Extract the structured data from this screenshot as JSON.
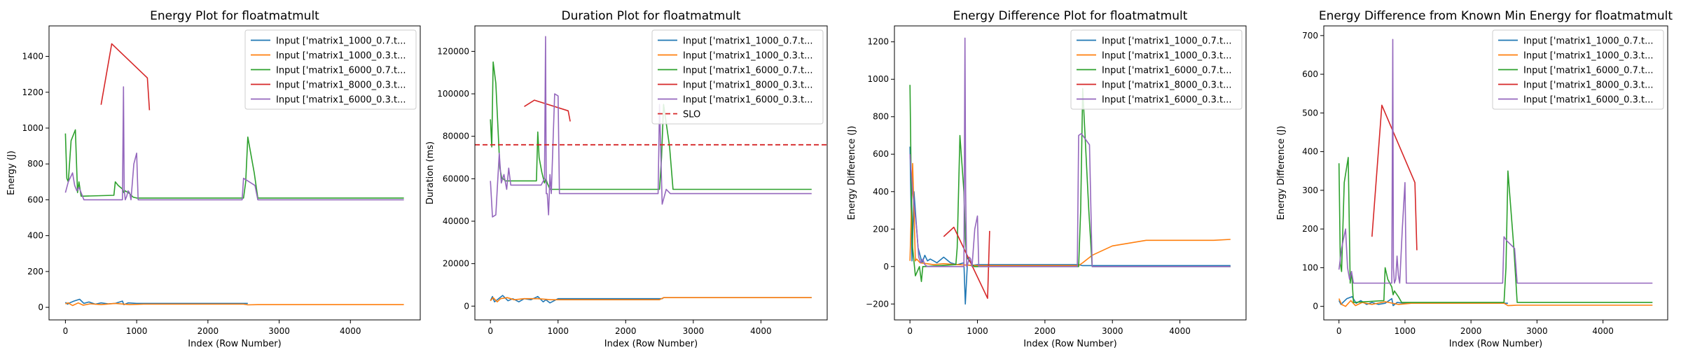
{
  "chart_data": [
    {
      "type": "line",
      "title": "Energy Plot for floatmatmult",
      "xlabel": "Index (Row Number)",
      "ylabel": "Energy (J)",
      "xlim": [
        -230,
        4980
      ],
      "ylim": [
        -70,
        1570
      ],
      "xticks": [
        0,
        1000,
        2000,
        3000,
        4000
      ],
      "yticks": [
        0,
        200,
        400,
        600,
        800,
        1000,
        1200,
        1400
      ],
      "legend_position": "top-right",
      "series": [
        {
          "name": "Input ['matrix1_1000_0.7.t...",
          "color": "#1f77b4",
          "x": [
            0,
            30,
            60,
            120,
            200,
            260,
            330,
            420,
            500,
            600,
            700,
            800,
            820,
            880,
            1000,
            1200,
            2500,
            2540,
            2560
          ],
          "y": [
            28,
            18,
            25,
            35,
            45,
            22,
            30,
            18,
            25,
            20,
            22,
            35,
            15,
            25,
            22,
            22,
            22,
            22,
            22
          ]
        },
        {
          "name": "Input ['matrix1_1000_0.3.t...",
          "color": "#ff7f0e",
          "x": [
            0,
            40,
            100,
            180,
            250,
            350,
            500,
            700,
            900,
            1100,
            1300,
            2000,
            2500,
            2560,
            2700,
            3500,
            4000,
            4500,
            4750
          ],
          "y": [
            20,
            25,
            10,
            25,
            12,
            20,
            15,
            22,
            15,
            18,
            18,
            18,
            18,
            14,
            15,
            15,
            15,
            15,
            15
          ]
        },
        {
          "name": "Input ['matrix1_6000_0.7.t...",
          "color": "#2ca02c",
          "x": [
            0,
            20,
            40,
            80,
            140,
            170,
            190,
            220,
            680,
            700,
            740,
            800,
            820,
            840,
            900,
            950,
            1000,
            2450,
            2500,
            2530,
            2560,
            2650,
            2700,
            4750
          ],
          "y": [
            970,
            720,
            700,
            930,
            990,
            640,
            700,
            620,
            625,
            700,
            680,
            660,
            640,
            650,
            635,
            615,
            610,
            610,
            610,
            700,
            950,
            750,
            610,
            610
          ]
        },
        {
          "name": "Input ['matrix1_8000_0.3.t...",
          "color": "#d62728",
          "x": [
            500,
            650,
            1150,
            1180
          ],
          "y": [
            1130,
            1470,
            1280,
            1100
          ]
        },
        {
          "name": "Input ['matrix1_6000_0.3.t...",
          "color": "#9467bd",
          "x": [
            0,
            40,
            100,
            130,
            160,
            190,
            220,
            260,
            320,
            800,
            815,
            825,
            840,
            860,
            880,
            900,
            920,
            960,
            1000,
            1020,
            1050,
            2480,
            2500,
            2540,
            2660,
            2700,
            4750
          ],
          "y": [
            640,
            700,
            750,
            680,
            650,
            670,
            640,
            600,
            600,
            600,
            1230,
            660,
            600,
            620,
            650,
            640,
            600,
            800,
            860,
            600,
            600,
            600,
            720,
            710,
            680,
            600,
            600
          ]
        }
      ]
    },
    {
      "type": "line",
      "title": "Duration Plot for floatmatmult",
      "xlabel": "Index (Row Number)",
      "ylabel": "Duration (ms)",
      "xlim": [
        -230,
        4980
      ],
      "ylim": [
        -6500,
        132000
      ],
      "xticks": [
        0,
        1000,
        2000,
        3000,
        4000
      ],
      "yticks": [
        0,
        20000,
        40000,
        60000,
        80000,
        100000,
        120000
      ],
      "legend_position": "top-right",
      "hline": {
        "name": "SLO",
        "y": 76000,
        "color": "#d62728"
      },
      "series": [
        {
          "name": "Input ['matrix1_1000_0.7.t...",
          "color": "#1f77b4",
          "x": [
            0,
            30,
            60,
            100,
            180,
            260,
            330,
            420,
            500,
            600,
            700,
            780,
            820,
            880,
            1000,
            1200,
            2500,
            2540,
            2560,
            4750
          ],
          "y": [
            2500,
            4500,
            2000,
            3000,
            5000,
            2500,
            3500,
            2000,
            3500,
            3000,
            4500,
            2000,
            3000,
            1500,
            3500,
            3500,
            3500,
            3500,
            4000,
            4000
          ]
        },
        {
          "name": "Input ['matrix1_1000_0.3.t...",
          "color": "#ff7f0e",
          "x": [
            0,
            40,
            100,
            150,
            250,
            350,
            500,
            700,
            900,
            1100,
            1300,
            2000,
            2500,
            2560,
            2700,
            3500,
            4000,
            4500,
            4750
          ],
          "y": [
            2500,
            4000,
            2000,
            3500,
            4000,
            3000,
            3500,
            3500,
            3000,
            3000,
            3000,
            3000,
            3000,
            4000,
            4000,
            4000,
            4000,
            4000,
            4000
          ]
        },
        {
          "name": "Input ['matrix1_6000_0.7.t...",
          "color": "#2ca02c",
          "x": [
            0,
            20,
            40,
            80,
            140,
            170,
            190,
            220,
            680,
            700,
            720,
            760,
            800,
            820,
            840,
            880,
            1000,
            2450,
            2500,
            2530,
            2560,
            2650,
            2700,
            4750
          ],
          "y": [
            88000,
            75000,
            115000,
            105000,
            65000,
            60000,
            60000,
            59000,
            59000,
            82000,
            70000,
            63000,
            58000,
            60000,
            58000,
            55000,
            55000,
            55000,
            55000,
            70000,
            95000,
            75000,
            55000,
            55000
          ]
        },
        {
          "name": "Input ['matrix1_8000_0.3.t...",
          "color": "#d62728",
          "x": [
            500,
            650,
            1150,
            1180
          ],
          "y": [
            94000,
            97000,
            92000,
            87000
          ]
        },
        {
          "name": "Input ['matrix1_6000_0.3.t...",
          "color": "#9467bd",
          "x": [
            0,
            30,
            80,
            130,
            160,
            200,
            240,
            270,
            300,
            750,
            800,
            815,
            825,
            840,
            860,
            880,
            900,
            950,
            1000,
            1020,
            1050,
            2480,
            2500,
            2540,
            2600,
            2660,
            2700,
            4750
          ],
          "y": [
            59000,
            42000,
            43000,
            72000,
            58000,
            62000,
            55000,
            65000,
            57000,
            57000,
            60000,
            127000,
            53000,
            53000,
            43000,
            62000,
            53000,
            100000,
            99000,
            53000,
            53000,
            53000,
            95000,
            48000,
            55000,
            53000,
            53000,
            53000
          ]
        }
      ]
    },
    {
      "type": "line",
      "title": "Energy Difference Plot for floatmatmult",
      "xlabel": "Index (Row Number)",
      "ylabel": "Energy Difference (J)",
      "xlim": [
        -230,
        4980
      ],
      "ylim": [
        -285,
        1285
      ],
      "xticks": [
        0,
        1000,
        2000,
        3000,
        4000
      ],
      "yticks": [
        -200,
        0,
        200,
        400,
        600,
        800,
        1000,
        1200
      ],
      "legend_position": "top-right",
      "series": [
        {
          "name": "Input ['matrix1_1000_0.7.t...",
          "color": "#1f77b4",
          "x": [
            0,
            30,
            60,
            120,
            180,
            220,
            260,
            300,
            350,
            400,
            500,
            600,
            700,
            800,
            820,
            850,
            900,
            1000,
            2500,
            2550,
            4750
          ],
          "y": [
            640,
            30,
            400,
            100,
            20,
            60,
            30,
            40,
            30,
            20,
            50,
            20,
            10,
            20,
            -200,
            10,
            5,
            10,
            10,
            5,
            5
          ]
        },
        {
          "name": "Input ['matrix1_1000_0.3.t...",
          "color": "#ff7f0e",
          "x": [
            0,
            40,
            80,
            100,
            150,
            250,
            350,
            500,
            700,
            1000,
            1500,
            2000,
            2500,
            2560,
            2700,
            3000,
            3500,
            4000,
            4500,
            4750
          ],
          "y": [
            30,
            550,
            30,
            40,
            20,
            15,
            10,
            15,
            10,
            5,
            5,
            5,
            5,
            20,
            60,
            110,
            140,
            140,
            140,
            145
          ]
        },
        {
          "name": "Input ['matrix1_6000_0.7.t...",
          "color": "#2ca02c",
          "x": [
            0,
            20,
            40,
            80,
            140,
            170,
            190,
            220,
            680,
            700,
            740,
            800,
            820,
            840,
            900,
            950,
            1000,
            2450,
            2500,
            2530,
            2560,
            2650,
            2700,
            4750
          ],
          "y": [
            970,
            400,
            100,
            -50,
            0,
            -80,
            0,
            0,
            10,
            100,
            700,
            400,
            150,
            50,
            20,
            0,
            0,
            0,
            0,
            300,
            950,
            300,
            0,
            0
          ]
        },
        {
          "name": "Input ['matrix1_8000_0.3.t...",
          "color": "#d62728",
          "x": [
            500,
            650,
            1150,
            1180
          ],
          "y": [
            160,
            210,
            -170,
            190
          ]
        },
        {
          "name": "Input ['matrix1_6000_0.3.t...",
          "color": "#9467bd",
          "x": [
            0,
            40,
            100,
            130,
            160,
            190,
            220,
            260,
            320,
            800,
            815,
            825,
            840,
            860,
            880,
            900,
            920,
            960,
            1000,
            1020,
            1050,
            2480,
            2500,
            2540,
            2660,
            2700,
            4750
          ],
          "y": [
            600,
            400,
            200,
            50,
            20,
            40,
            10,
            0,
            0,
            0,
            1220,
            400,
            0,
            20,
            50,
            40,
            0,
            200,
            270,
            0,
            0,
            0,
            700,
            710,
            650,
            0,
            0
          ]
        }
      ]
    },
    {
      "type": "line",
      "title": "Energy Difference from Known Min Energy for floatmatmult",
      "xlabel": "Index (Row Number)",
      "ylabel": "Energy Difference (J)",
      "xlim": [
        -230,
        4980
      ],
      "ylim": [
        -35,
        725
      ],
      "xticks": [
        0,
        1000,
        2000,
        3000,
        4000
      ],
      "yticks": [
        0,
        100,
        200,
        300,
        400,
        500,
        600,
        700
      ],
      "legend_position": "top-right",
      "series": [
        {
          "name": "Input ['matrix1_1000_0.7.t...",
          "color": "#1f77b4",
          "x": [
            0,
            30,
            60,
            120,
            200,
            260,
            330,
            420,
            500,
            600,
            700,
            800,
            820,
            880,
            1000,
            1200,
            2500,
            2540,
            2560
          ],
          "y": [
            15,
            5,
            10,
            20,
            25,
            8,
            15,
            5,
            10,
            5,
            8,
            20,
            2,
            10,
            8,
            8,
            8,
            8,
            8
          ]
        },
        {
          "name": "Input ['matrix1_1000_0.3.t...",
          "color": "#ff7f0e",
          "x": [
            0,
            40,
            100,
            180,
            250,
            350,
            500,
            700,
            900,
            1100,
            1300,
            2000,
            2500,
            2560,
            2700,
            3500,
            4000,
            4500,
            4750
          ],
          "y": [
            20,
            5,
            0,
            15,
            2,
            10,
            5,
            12,
            5,
            8,
            8,
            8,
            8,
            2,
            3,
            3,
            3,
            3,
            3
          ]
        },
        {
          "name": "Input ['matrix1_6000_0.7.t...",
          "color": "#2ca02c",
          "x": [
            0,
            20,
            40,
            80,
            140,
            170,
            190,
            220,
            680,
            700,
            740,
            800,
            820,
            840,
            900,
            950,
            1000,
            2450,
            2500,
            2530,
            2560,
            2650,
            2700,
            4750
          ],
          "y": [
            370,
            110,
            90,
            320,
            385,
            60,
            90,
            10,
            15,
            100,
            70,
            50,
            30,
            40,
            25,
            10,
            10,
            10,
            10,
            100,
            350,
            150,
            10,
            10
          ]
        },
        {
          "name": "Input ['matrix1_8000_0.3.t...",
          "color": "#d62728",
          "x": [
            500,
            650,
            1150,
            1180
          ],
          "y": [
            180,
            520,
            320,
            145
          ]
        },
        {
          "name": "Input ['matrix1_6000_0.3.t...",
          "color": "#9467bd",
          "x": [
            0,
            40,
            100,
            130,
            160,
            190,
            220,
            260,
            320,
            800,
            815,
            825,
            840,
            860,
            880,
            900,
            920,
            960,
            1000,
            1020,
            1050,
            2480,
            2500,
            2540,
            2660,
            2700,
            4750
          ],
          "y": [
            95,
            150,
            200,
            100,
            70,
            90,
            60,
            60,
            60,
            60,
            690,
            100,
            60,
            70,
            130,
            80,
            60,
            200,
            320,
            60,
            60,
            60,
            180,
            170,
            150,
            60,
            60
          ]
        }
      ]
    }
  ]
}
